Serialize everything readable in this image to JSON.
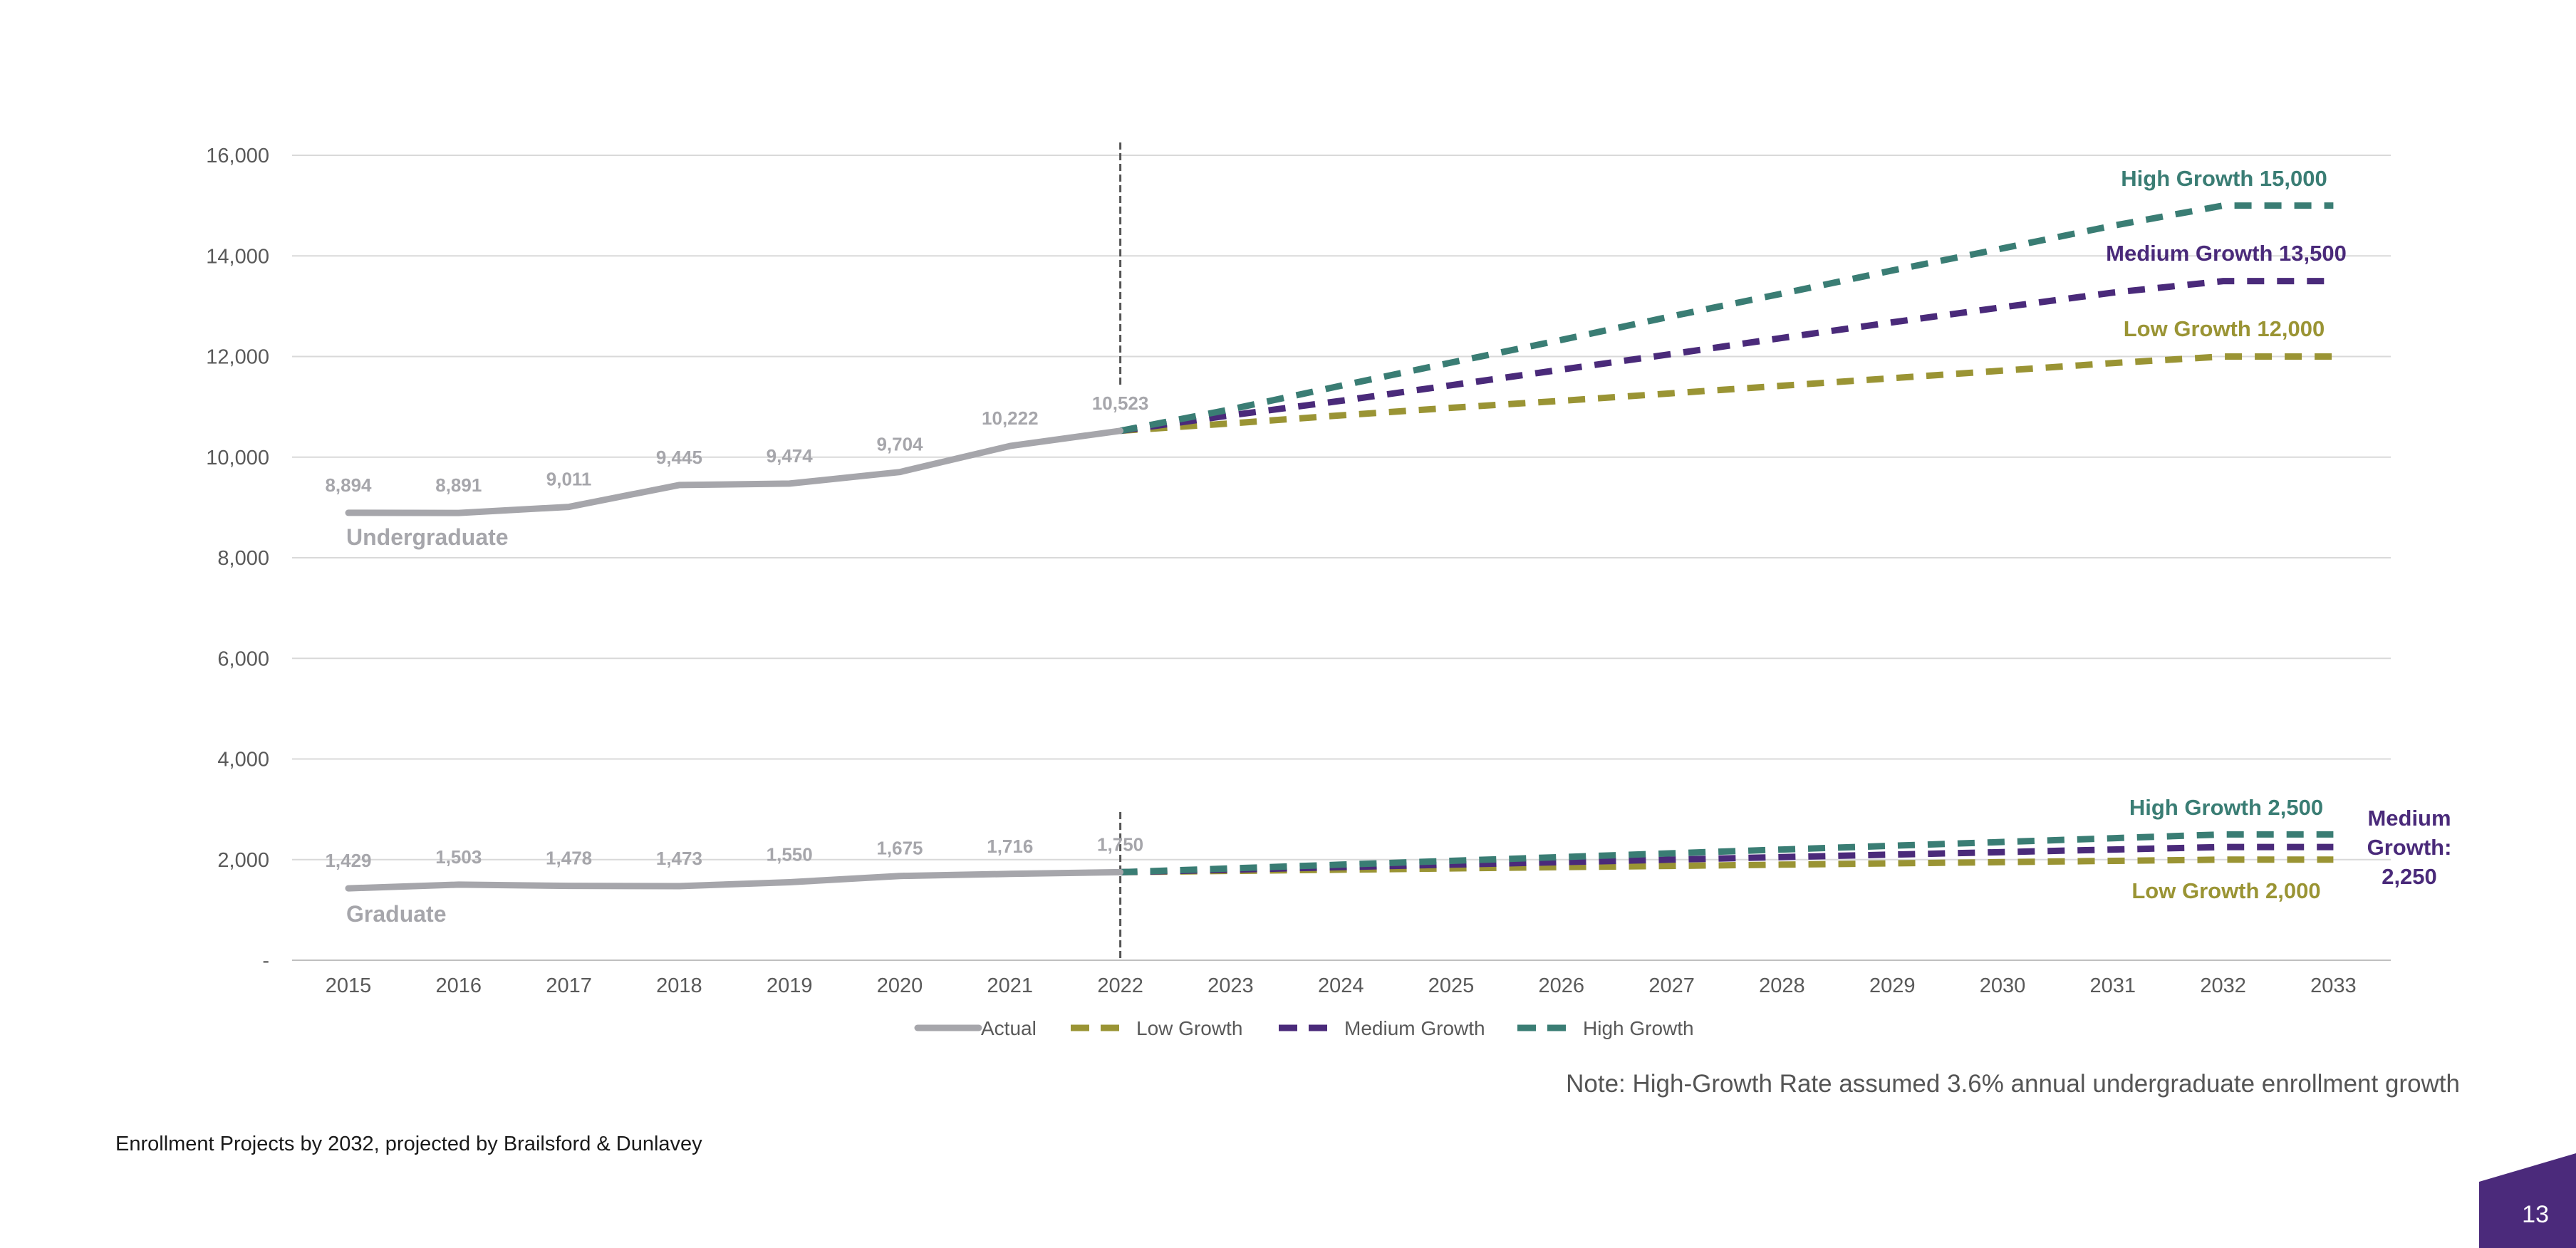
{
  "note": "Note: High-Growth Rate assumed 3.6% annual undergraduate enrollment growth",
  "footer_caption": "Enrollment Projects by 2032, projected by Brailsford & Dunlavey",
  "page_number": "13",
  "colors": {
    "actual": "#a6a6ab",
    "low": "#9a9434",
    "medium": "#4a2a7a",
    "high": "#3a7d74",
    "grid": "#d9d9d9",
    "axis_text": "#595959",
    "corner": "#4b2a7b"
  },
  "chart_data": {
    "type": "line",
    "x": [
      "2015",
      "2016",
      "2017",
      "2018",
      "2019",
      "2020",
      "2021",
      "2022",
      "2023",
      "2024",
      "2025",
      "2026",
      "2027",
      "2028",
      "2029",
      "2030",
      "2031",
      "2032",
      "2033"
    ],
    "y_ticks": [
      "-",
      "2,000",
      "4,000",
      "6,000",
      "8,000",
      "10,000",
      "12,000",
      "14,000",
      "16,000"
    ],
    "ylim": [
      0,
      16000
    ],
    "grid": "horizontal",
    "legend_position": "bottom",
    "legend": [
      "Actual",
      "Low Growth",
      "Medium Growth",
      "High Growth"
    ],
    "divider_year": "2022",
    "undergraduate": {
      "label": "Undergraduate",
      "actual": {
        "x": [
          "2015",
          "2016",
          "2017",
          "2018",
          "2019",
          "2020",
          "2021",
          "2022"
        ],
        "values": [
          8894,
          8891,
          9011,
          9445,
          9474,
          9704,
          10222,
          10523
        ],
        "labels": [
          "8,894",
          "8,891",
          "9,011",
          "9,445",
          "9,474",
          "9,704",
          "10,222",
          "10,523"
        ]
      },
      "projections": {
        "x": [
          "2022",
          "2023",
          "2024",
          "2025",
          "2026",
          "2027",
          "2028",
          "2029",
          "2030",
          "2031",
          "2032",
          "2033"
        ],
        "low": [
          10523,
          10670,
          10830,
          10980,
          11120,
          11270,
          11420,
          11570,
          11720,
          11870,
          12000,
          12000
        ],
        "medium": [
          10523,
          10830,
          11120,
          11430,
          11740,
          12050,
          12370,
          12680,
          12980,
          13270,
          13500,
          13500
        ],
        "high": [
          10523,
          10950,
          11420,
          11880,
          12330,
          12800,
          13250,
          13710,
          14150,
          14600,
          15000,
          15000
        ]
      },
      "end_labels": {
        "high": "High Growth 15,000",
        "medium": "Medium Growth 13,500",
        "low": "Low Growth 12,000"
      }
    },
    "graduate": {
      "label": "Graduate",
      "actual": {
        "x": [
          "2015",
          "2016",
          "2017",
          "2018",
          "2019",
          "2020",
          "2021",
          "2022"
        ],
        "values": [
          1429,
          1503,
          1478,
          1473,
          1550,
          1675,
          1716,
          1750
        ],
        "labels": [
          "1,429",
          "1,503",
          "1,478",
          "1,473",
          "1,550",
          "1,675",
          "1,716",
          "1,750"
        ]
      },
      "projections": {
        "x": [
          "2022",
          "2023",
          "2024",
          "2025",
          "2026",
          "2027",
          "2028",
          "2029",
          "2030",
          "2031",
          "2032",
          "2033"
        ],
        "low": [
          1750,
          1775,
          1800,
          1825,
          1850,
          1875,
          1900,
          1925,
          1950,
          1975,
          2000,
          2000
        ],
        "medium": [
          1750,
          1800,
          1850,
          1900,
          1950,
          2000,
          2050,
          2100,
          2150,
          2200,
          2250,
          2250
        ],
        "high": [
          1750,
          1825,
          1900,
          1975,
          2050,
          2125,
          2200,
          2275,
          2350,
          2425,
          2500,
          2500
        ]
      },
      "end_labels": {
        "high": "High Growth 2,500",
        "medium_lines": [
          "Medium",
          "Growth:",
          "2,250"
        ],
        "low": "Low Growth  2,000"
      }
    }
  }
}
